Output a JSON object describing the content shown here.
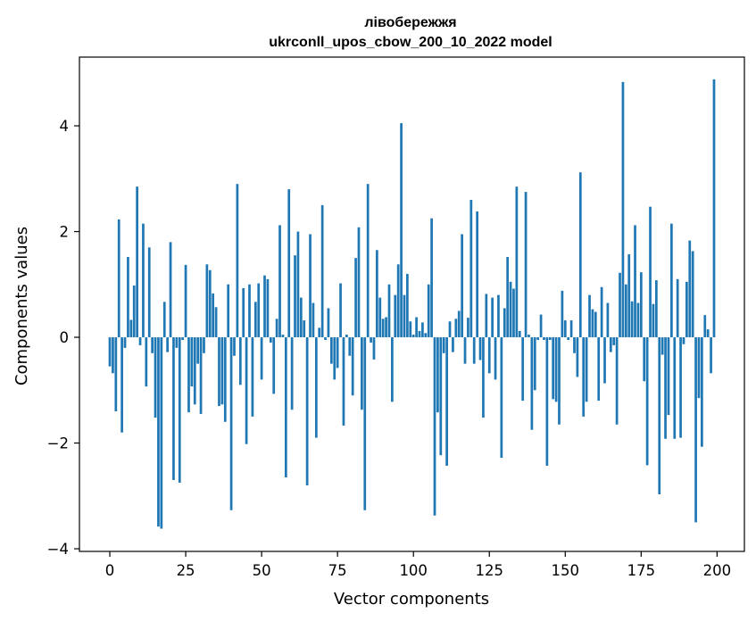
{
  "chart_data": {
    "type": "bar",
    "title": "лівобережжя",
    "subtitle": "ukrconll_upos_cbow_200_10_2022 model",
    "xlabel": "Vector components",
    "ylabel": "Components values",
    "xlim": [
      -10,
      209
    ],
    "ylim": [
      -4.05,
      5.3
    ],
    "xticks": [
      0,
      25,
      50,
      75,
      100,
      125,
      150,
      175,
      200
    ],
    "xtick_labels": [
      "0",
      "25",
      "50",
      "75",
      "100",
      "125",
      "150",
      "175",
      "200"
    ],
    "yticks": [
      -4,
      -2,
      0,
      2,
      4
    ],
    "ytick_labels": [
      "−4",
      "−2",
      "0",
      "2",
      "4"
    ],
    "bar_color": "#1f77b4",
    "x": [
      0,
      1,
      2,
      3,
      4,
      5,
      6,
      7,
      8,
      9,
      10,
      11,
      12,
      13,
      14,
      15,
      16,
      17,
      18,
      19,
      20,
      21,
      22,
      23,
      24,
      25,
      26,
      27,
      28,
      29,
      30,
      31,
      32,
      33,
      34,
      35,
      36,
      37,
      38,
      39,
      40,
      41,
      42,
      43,
      44,
      45,
      46,
      47,
      48,
      49,
      50,
      51,
      52,
      53,
      54,
      55,
      56,
      57,
      58,
      59,
      60,
      61,
      62,
      63,
      64,
      65,
      66,
      67,
      68,
      69,
      70,
      71,
      72,
      73,
      74,
      75,
      76,
      77,
      78,
      79,
      80,
      81,
      82,
      83,
      84,
      85,
      86,
      87,
      88,
      89,
      90,
      91,
      92,
      93,
      94,
      95,
      96,
      97,
      98,
      99,
      100,
      101,
      102,
      103,
      104,
      105,
      106,
      107,
      108,
      109,
      110,
      111,
      112,
      113,
      114,
      115,
      116,
      117,
      118,
      119,
      120,
      121,
      122,
      123,
      124,
      125,
      126,
      127,
      128,
      129,
      130,
      131,
      132,
      133,
      134,
      135,
      136,
      137,
      138,
      139,
      140,
      141,
      142,
      143,
      144,
      145,
      146,
      147,
      148,
      149,
      150,
      151,
      152,
      153,
      154,
      155,
      156,
      157,
      158,
      159,
      160,
      161,
      162,
      163,
      164,
      165,
      166,
      167,
      168,
      169,
      170,
      171,
      172,
      173,
      174,
      175,
      176,
      177,
      178,
      179,
      180,
      181,
      182,
      183,
      184,
      185,
      186,
      187,
      188,
      189,
      190,
      191,
      192,
      193,
      194,
      195,
      196,
      197,
      198,
      199
    ],
    "values": [
      -0.55,
      -0.68,
      -1.4,
      2.23,
      -1.8,
      -0.2,
      1.52,
      0.33,
      0.98,
      2.85,
      -0.15,
      2.15,
      -0.93,
      1.7,
      -0.3,
      -1.52,
      -3.58,
      -3.62,
      0.67,
      -0.28,
      1.8,
      -2.7,
      -0.2,
      -2.75,
      -0.05,
      1.37,
      -1.42,
      -0.93,
      -1.27,
      -0.5,
      -1.45,
      -0.3,
      1.38,
      1.27,
      0.83,
      0.57,
      -1.3,
      -1.27,
      -1.6,
      1.0,
      -3.27,
      -0.35,
      2.9,
      -0.9,
      0.93,
      -2.02,
      1.0,
      -1.5,
      0.67,
      1.02,
      -0.8,
      1.17,
      1.1,
      -0.1,
      -1.07,
      0.35,
      2.12,
      0.05,
      -2.65,
      2.8,
      -1.37,
      1.55,
      2.0,
      0.75,
      0.32,
      -2.8,
      1.95,
      0.65,
      -1.9,
      0.18,
      2.5,
      -0.05,
      0.55,
      -0.5,
      -0.8,
      -0.58,
      1.02,
      -1.67,
      0.05,
      -0.35,
      -1.1,
      1.5,
      2.08,
      -1.37,
      -3.27,
      2.9,
      -0.1,
      -0.42,
      1.65,
      0.75,
      0.35,
      0.38,
      1.0,
      -1.22,
      0.8,
      1.38,
      4.05,
      0.8,
      1.2,
      0.3,
      0.05,
      0.38,
      0.12,
      0.28,
      0.08,
      1.0,
      2.25,
      -3.37,
      -1.42,
      -2.23,
      -0.3,
      -2.43,
      0.3,
      -0.28,
      0.35,
      0.5,
      1.95,
      -0.5,
      0.37,
      2.6,
      -0.5,
      2.38,
      -0.43,
      -1.52,
      0.82,
      -0.68,
      0.75,
      -0.8,
      0.8,
      -2.28,
      0.55,
      1.52,
      1.05,
      0.92,
      2.85,
      0.12,
      -1.2,
      2.75,
      0.05,
      -1.75,
      -1.0,
      -0.05,
      0.43,
      -0.05,
      -2.43,
      -0.05,
      -1.17,
      -1.22,
      -1.65,
      0.88,
      0.32,
      -0.05,
      0.32,
      -0.3,
      -0.75,
      3.12,
      -1.5,
      -1.22,
      0.8,
      0.53,
      0.48,
      -1.2,
      0.95,
      -0.87,
      0.65,
      -0.28,
      -0.15,
      -1.65,
      1.22,
      4.83,
      1.0,
      1.57,
      0.68,
      2.12,
      0.65,
      1.23,
      -0.83,
      -2.42,
      2.47,
      0.63,
      1.08,
      -2.97,
      -0.33,
      -1.92,
      -1.47,
      2.15,
      -1.92,
      1.1,
      -1.9,
      -0.13,
      1.05,
      1.83,
      1.63,
      -3.5,
      -1.15,
      -2.07,
      0.42,
      0.15,
      -0.68,
      4.88
    ]
  }
}
